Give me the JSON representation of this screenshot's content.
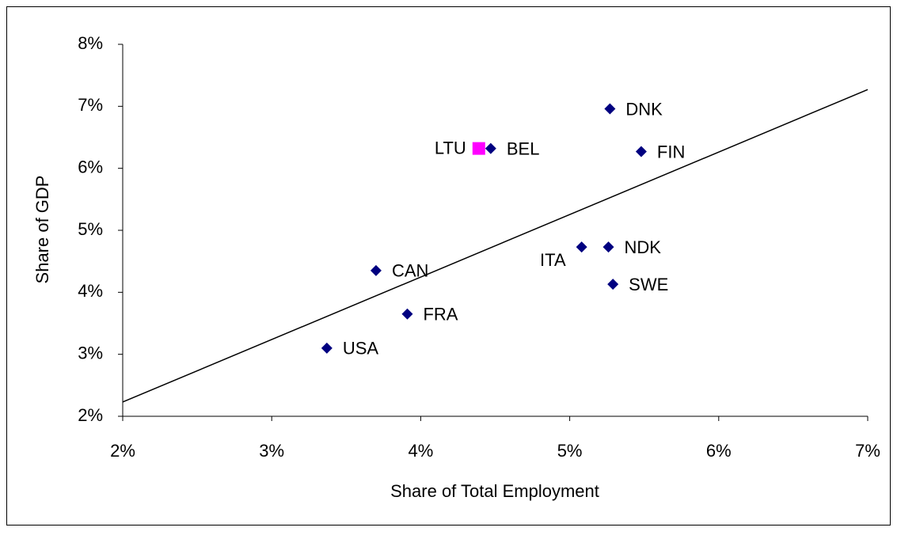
{
  "chart_data": {
    "type": "scatter",
    "xlabel": "Share of Total Employment",
    "ylabel": "Share of GDP",
    "xlim": [
      2,
      7
    ],
    "ylim": [
      2,
      8
    ],
    "xticks": [
      {
        "value": 2,
        "label": "2%"
      },
      {
        "value": 3,
        "label": "3%"
      },
      {
        "value": 4,
        "label": "4%"
      },
      {
        "value": 5,
        "label": "5%"
      },
      {
        "value": 6,
        "label": "6%"
      },
      {
        "value": 7,
        "label": "7%"
      }
    ],
    "yticks": [
      {
        "value": 2,
        "label": "2%"
      },
      {
        "value": 3,
        "label": "3%"
      },
      {
        "value": 4,
        "label": "4%"
      },
      {
        "value": 5,
        "label": "5%"
      },
      {
        "value": 6,
        "label": "6%"
      },
      {
        "value": 7,
        "label": "7%"
      },
      {
        "value": 8,
        "label": "8%"
      }
    ],
    "series": [
      {
        "color": "#000080",
        "marker": "diamond",
        "labels": [
          "USA",
          "CAN",
          "FRA",
          "BEL",
          "ITA",
          "NDK",
          "SWE",
          "DNK",
          "FIN"
        ],
        "x": [
          3.37,
          3.7,
          3.91,
          4.47,
          5.08,
          5.26,
          5.29,
          5.27,
          5.48
        ],
        "y": [
          3.1,
          4.35,
          3.65,
          6.32,
          4.73,
          4.73,
          4.13,
          6.96,
          6.27
        ]
      },
      {
        "color": "#ff00ff",
        "marker": "square",
        "labels": [
          "LTU"
        ],
        "x": [
          4.39
        ],
        "y": [
          6.32
        ]
      }
    ],
    "trendline": {
      "color": "#000000",
      "x": [
        2,
        7
      ],
      "y": [
        2.23,
        7.27
      ]
    }
  }
}
